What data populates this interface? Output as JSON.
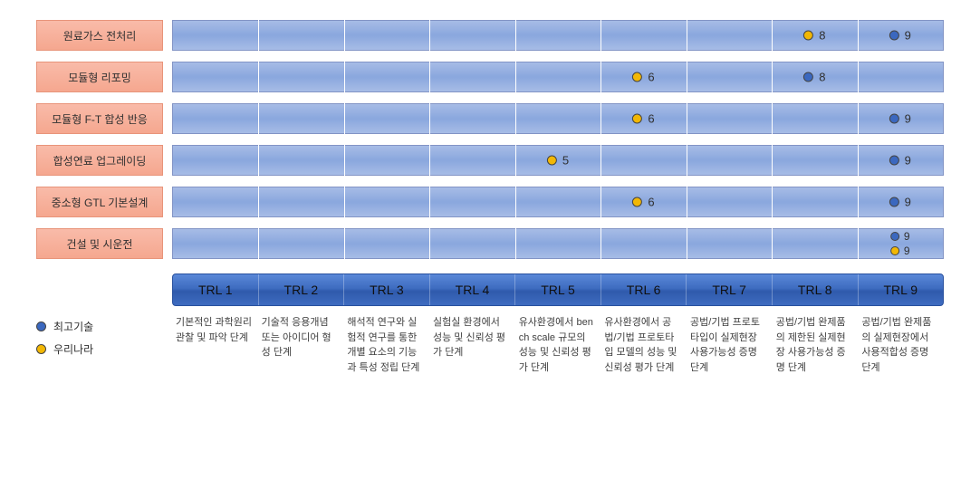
{
  "colors": {
    "best": "#3b68bf",
    "korea": "#f2b705",
    "row_label_bg": "#f5a78f",
    "bar_bg": "#8ba8de",
    "axis_bg": "#3e6cc0"
  },
  "trl_count": 9,
  "rows": [
    {
      "label": "원료가스 전처리",
      "markers": [
        {
          "type": "korea",
          "trl": 8,
          "value": "8"
        },
        {
          "type": "best",
          "trl": 9,
          "value": "9"
        }
      ]
    },
    {
      "label": "모듈형 리포밍",
      "markers": [
        {
          "type": "korea",
          "trl": 6,
          "value": "6"
        },
        {
          "type": "best",
          "trl": 8,
          "value": "8"
        }
      ]
    },
    {
      "label": "모듈형 F-T 합성 반응",
      "markers": [
        {
          "type": "korea",
          "trl": 6,
          "value": "6"
        },
        {
          "type": "best",
          "trl": 9,
          "value": "9"
        }
      ]
    },
    {
      "label": "합성연료 업그레이딩",
      "markers": [
        {
          "type": "korea",
          "trl": 5,
          "value": "5"
        },
        {
          "type": "best",
          "trl": 9,
          "value": "9"
        }
      ]
    },
    {
      "label": "중소형 GTL 기본설계",
      "markers": [
        {
          "type": "korea",
          "trl": 6,
          "value": "6"
        },
        {
          "type": "best",
          "trl": 9,
          "value": "9"
        }
      ]
    },
    {
      "label": "건설 및 시운전",
      "stacked_at": 9,
      "markers": [
        {
          "type": "best",
          "trl": 9,
          "value": "9"
        },
        {
          "type": "korea",
          "trl": 9,
          "value": "9"
        }
      ]
    }
  ],
  "axis": {
    "labels": [
      "TRL 1",
      "TRL 2",
      "TRL 3",
      "TRL 4",
      "TRL 5",
      "TRL 6",
      "TRL 7",
      "TRL 8",
      "TRL 9"
    ]
  },
  "legend": {
    "best": "최고기술",
    "korea": "우리나라"
  },
  "descriptions": [
    "기본적인 과학원리 관찰 및 파악 단계",
    "기술적 응용개념 또는 아이디어 형성 단계",
    "해석적 연구와 실험적 연구를 통한 개별 요소의 기능과 특성 정립 단계",
    "실험실 환경에서 성능 및 신뢰성 평가 단계",
    "유사환경에서 bench scale 규모의 성능 및 신뢰성 평가 단계",
    "유사환경에서 공법/기법 프로토타입 모델의 성능 및 신뢰성 평가 단계",
    "공법/기법 프로토타입이 실제현장 사용가능성 증명 단계",
    "공법/기법 완제품의 제한된 실제현장 사용가능성 증명 단계",
    "공법/기법 완제품의 실제현장에서 사용적합성 증명 단계"
  ]
}
